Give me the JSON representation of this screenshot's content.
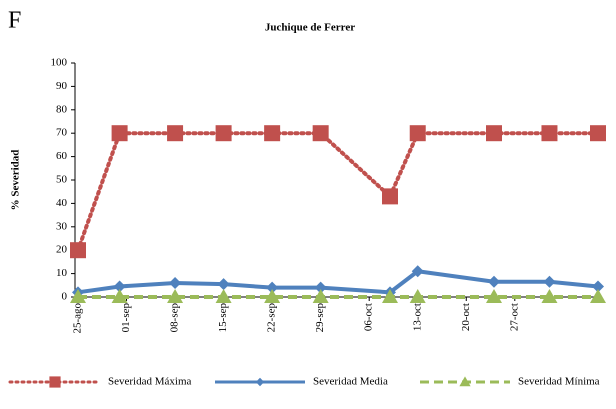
{
  "panel_label": "F",
  "chart_data": {
    "type": "line",
    "title": "Juchique de Ferrer",
    "y_label": "% Severidad",
    "x": [
      "08-25",
      "08-31",
      "09-08",
      "09-15",
      "09-22",
      "09-29",
      "10-09",
      "10-13",
      "10-24",
      "11-01",
      "11-08"
    ],
    "xlim": [
      "08-25",
      "11-08"
    ],
    "xticks": [
      {
        "value": "08-25",
        "label": "25-ago"
      },
      {
        "value": "09-01",
        "label": "01-sep"
      },
      {
        "value": "09-08",
        "label": "08-sep"
      },
      {
        "value": "09-15",
        "label": "15-sep"
      },
      {
        "value": "09-22",
        "label": "22-sep"
      },
      {
        "value": "09-29",
        "label": "29-sep"
      },
      {
        "value": "10-06",
        "label": "06-oct"
      },
      {
        "value": "10-13",
        "label": "13-oct"
      },
      {
        "value": "10-20",
        "label": "20-oct"
      },
      {
        "value": "10-27",
        "label": "27-oct"
      }
    ],
    "ylim": [
      0,
      100
    ],
    "yticks": [
      0,
      10,
      20,
      30,
      40,
      50,
      60,
      70,
      80,
      90,
      100
    ],
    "legend": "bottom",
    "series": [
      {
        "name": "Severidad Máxima",
        "color": "#c0504d",
        "dash": "dotted",
        "marker": "square",
        "values": [
          20,
          70,
          70,
          70,
          70,
          70,
          43,
          70,
          70,
          70,
          70
        ]
      },
      {
        "name": "Severidad Media",
        "color": "#4f81bd",
        "dash": "solid",
        "marker": "diamond",
        "values": [
          2,
          4.5,
          6,
          5.5,
          4,
          4,
          2,
          11,
          6.5,
          6.5,
          4.5
        ]
      },
      {
        "name": "Severidad Mínima",
        "color": "#9bbb59",
        "dash": "dashed",
        "marker": "triangle",
        "values": [
          0,
          0,
          0,
          0,
          0,
          0,
          0,
          0,
          0,
          0,
          0
        ]
      }
    ]
  }
}
